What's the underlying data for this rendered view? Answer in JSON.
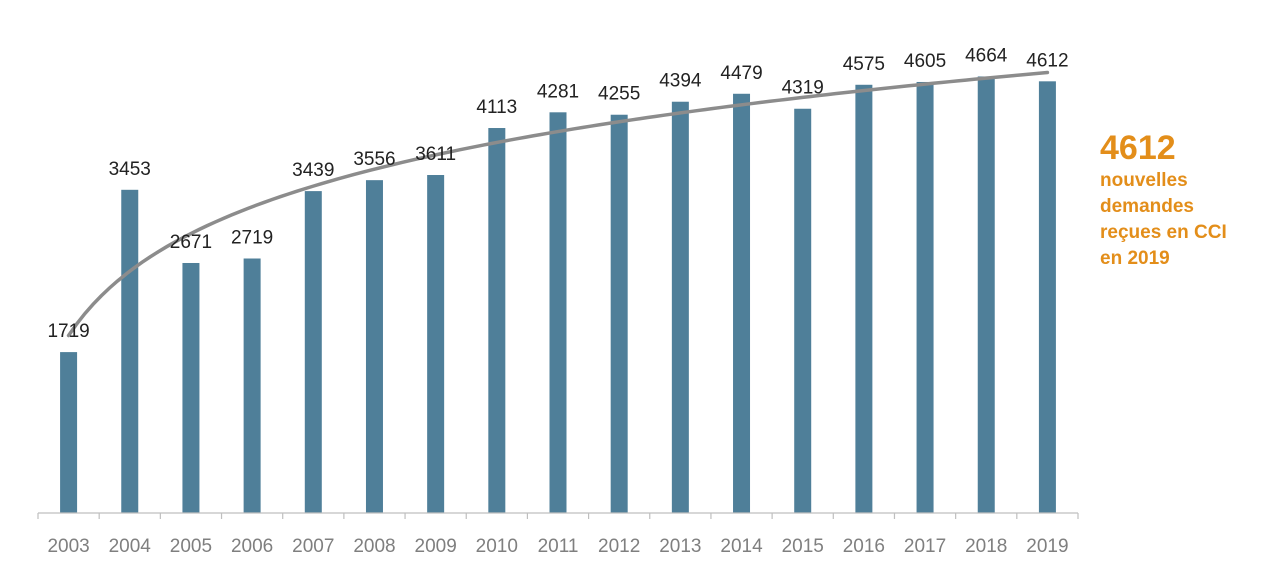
{
  "chart_data": {
    "type": "bar",
    "categories": [
      "2003",
      "2004",
      "2005",
      "2006",
      "2007",
      "2008",
      "2009",
      "2010",
      "2011",
      "2012",
      "2013",
      "2014",
      "2015",
      "2016",
      "2017",
      "2018",
      "2019"
    ],
    "values": [
      1719,
      3453,
      2671,
      2719,
      3439,
      3556,
      3611,
      4113,
      4281,
      4255,
      4394,
      4479,
      4319,
      4575,
      4605,
      4664,
      4612
    ],
    "data_labels": [
      "1719",
      "3453",
      "2671",
      "2719",
      "3439",
      "3556",
      "3611",
      "4113",
      "4281",
      "4255",
      "4394",
      "4479",
      "4319",
      "4575",
      "4605",
      "4664",
      "4612"
    ],
    "title": "",
    "xlabel": "",
    "ylabel": "",
    "ylim": [
      0,
      5000
    ],
    "grid": false,
    "legend": "none",
    "trendline": "logarithmic",
    "colors": {
      "bar": "#4f7f99",
      "trendline": "#8c8c8c",
      "axis": "#bfbfbf",
      "tick_label": "#7f7f7f",
      "data_label": "#222222"
    }
  },
  "callout": {
    "value": "4612",
    "lines": [
      "nouvelles",
      "demandes",
      "reçues en CCI",
      "en 2019"
    ],
    "color": "#e38e1a"
  }
}
